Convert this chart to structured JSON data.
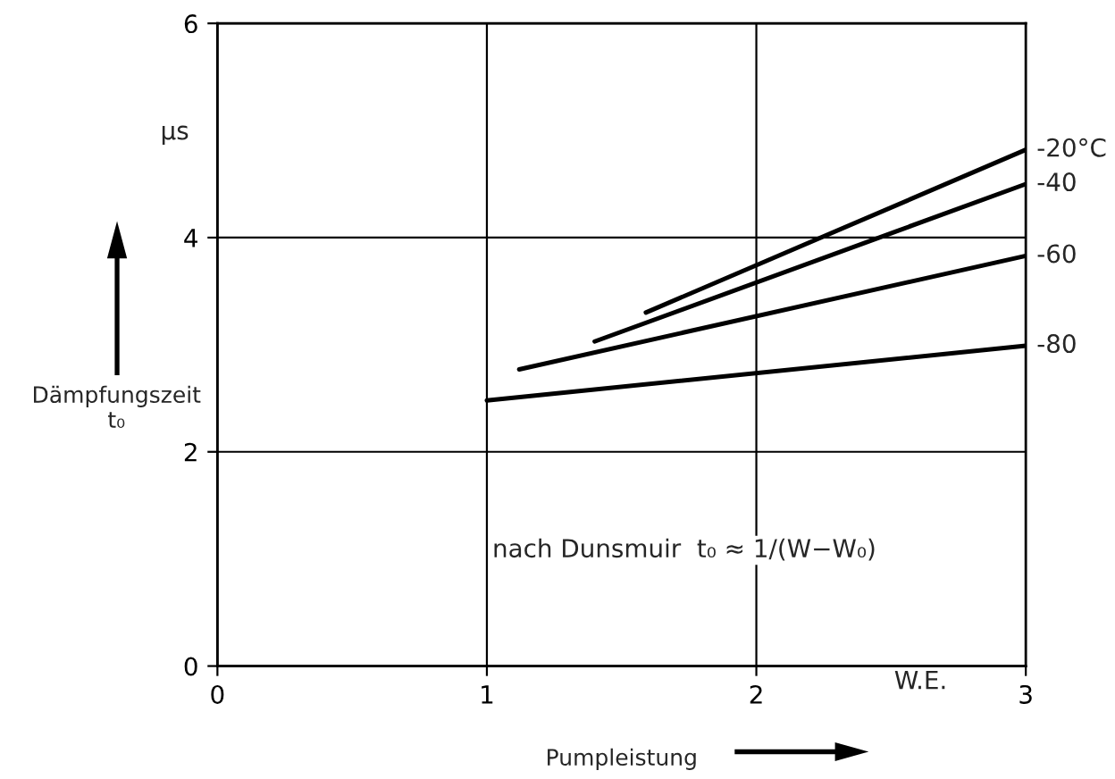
{
  "chart_data": {
    "type": "line",
    "xlabel": "Pumpleistung",
    "ylabel": "Dämpfungszeit\nt₀",
    "xlim": [
      0,
      3
    ],
    "ylim": [
      0,
      6
    ],
    "xticks": [
      0,
      1,
      2,
      3
    ],
    "yticks": [
      0,
      2,
      4,
      6
    ],
    "grid": true,
    "legend": false,
    "marker": "none",
    "line_style": "solid",
    "series": [
      {
        "name": "-20°C",
        "color": "#000000",
        "x": [
          1.59,
          3
        ],
        "values": [
          3.3,
          4.82
        ]
      },
      {
        "name": "-40",
        "color": "#000000",
        "x": [
          1.4,
          3
        ],
        "values": [
          3.03,
          4.5
        ]
      },
      {
        "name": "-60",
        "color": "#000000",
        "x": [
          1.12,
          3
        ],
        "values": [
          2.77,
          3.83
        ]
      },
      {
        "name": "-80",
        "color": "#000000",
        "x": [
          1,
          3
        ],
        "values": [
          2.48,
          2.99
        ]
      }
    ],
    "annotations": [
      "nach Dunsmuir  t₀ ≈ 1/(W−W₀)",
      "µs",
      "W.E."
    ]
  }
}
